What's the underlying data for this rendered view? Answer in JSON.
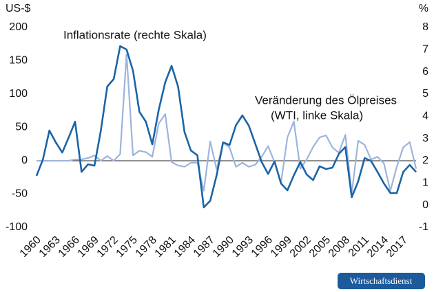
{
  "chart_data": {
    "type": "line",
    "y_label": "US-$",
    "y2_label": "%",
    "annotations": [
      "Inflationsrate (rechte Skala)",
      "Veränderung des Ölpreises",
      "(WTI, linke Skala)"
    ],
    "source": "Wirtschaftsdienst",
    "x": [
      1960,
      1961,
      1962,
      1963,
      1964,
      1965,
      1966,
      1967,
      1968,
      1969,
      1970,
      1971,
      1972,
      1973,
      1974,
      1975,
      1976,
      1977,
      1978,
      1979,
      1980,
      1981,
      1982,
      1983,
      1984,
      1985,
      1986,
      1987,
      1988,
      1989,
      1990,
      1991,
      1992,
      1993,
      1994,
      1995,
      1996,
      1997,
      1998,
      1999,
      2000,
      2001,
      2002,
      2003,
      2004,
      2005,
      2006,
      2007,
      2008,
      2009,
      2010,
      2011,
      2012,
      2013,
      2014,
      2015,
      2016,
      2017,
      2018,
      2019
    ],
    "series": [
      {
        "name": "Inflationsrate",
        "color": "#1a64a8",
        "axis": "y2",
        "values": [
          1.32,
          2.06,
          3.36,
          2.83,
          2.37,
          3.05,
          3.76,
          1.5,
          1.84,
          1.78,
          3.36,
          5.34,
          5.68,
          7.16,
          7.01,
          6.05,
          4.2,
          3.76,
          2.74,
          4.29,
          5.53,
          6.27,
          5.34,
          3.3,
          2.46,
          2.25,
          -0.1,
          0.2,
          1.35,
          2.83,
          2.71,
          3.6,
          4.04,
          3.58,
          2.77,
          1.94,
          1.41,
          1.97,
          0.98,
          0.67,
          1.35,
          1.94,
          1.38,
          1.13,
          1.75,
          1.63,
          1.69,
          2.31,
          2.62,
          0.36,
          1.07,
          2.12,
          1.99,
          1.5,
          0.98,
          0.55,
          0.55,
          1.5,
          1.81,
          1.5
        ]
      },
      {
        "name": "Veränderung des Ölpreises",
        "color": "#9db4dc",
        "values": [
          0,
          0,
          0,
          0,
          0,
          0,
          2,
          2,
          4,
          8,
          0,
          7,
          0,
          10,
          160,
          8,
          15,
          13,
          6,
          56,
          70,
          -2,
          -7,
          -9,
          -3,
          -3,
          -45,
          29,
          -13,
          27,
          20,
          -9,
          -3,
          -9,
          -6,
          6,
          22,
          -2,
          -33,
          35,
          59,
          -12,
          2,
          21,
          35,
          38,
          20,
          12,
          39,
          -49,
          30,
          24,
          2,
          6,
          -4,
          -45,
          -9,
          20,
          28,
          -12
        ]
      }
    ],
    "xlim": [
      1960,
      2019
    ],
    "xticks": [
      1960,
      1963,
      1966,
      1969,
      1972,
      1975,
      1978,
      1981,
      1984,
      1987,
      1990,
      1993,
      1996,
      1999,
      2002,
      2005,
      2008,
      2011,
      2014,
      2017
    ],
    "ylim": [
      -100,
      200
    ],
    "yticks": [
      -100,
      -50,
      0,
      50,
      100,
      150,
      200
    ],
    "y2lim": [
      -1,
      8
    ],
    "y2ticks": [
      -1,
      0,
      1,
      2,
      3,
      4,
      5,
      6,
      7,
      8
    ],
    "zero_line": true
  }
}
